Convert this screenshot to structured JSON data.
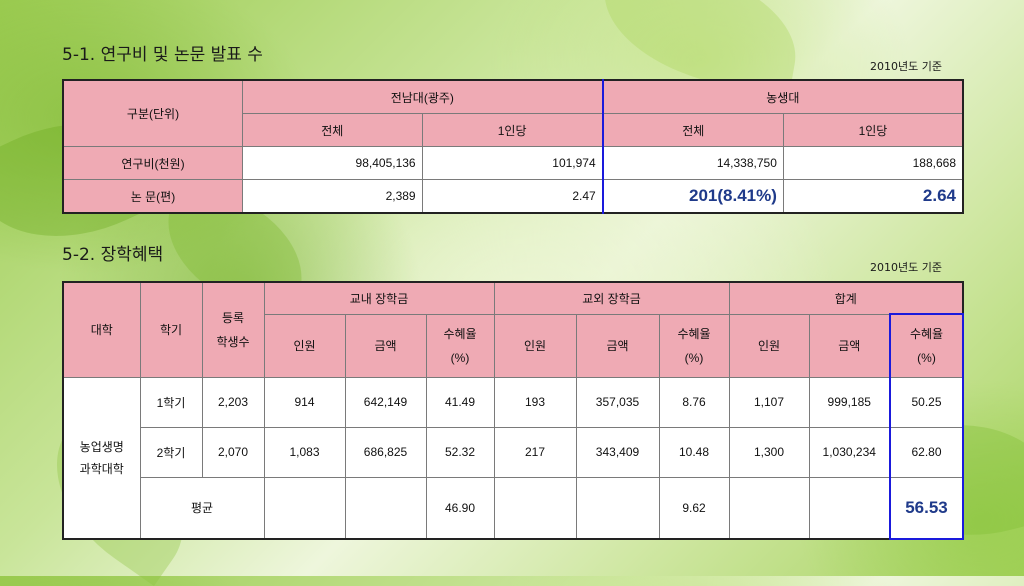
{
  "section1": {
    "title": "5-1.  연구비 및 논문 발표 수",
    "basis": "2010년도 기준",
    "header": {
      "category": "구분(단위)",
      "group1": "전남대(광주)",
      "group2": "농생대",
      "total": "전체",
      "per_person": "1인당"
    },
    "rows": [
      {
        "label": "연구비(천원)",
        "values": [
          "98,405,136",
          "101,974",
          "14,338,750",
          "188,668"
        ]
      },
      {
        "label": "논 문(편)",
        "values": [
          "2,389",
          "2.47",
          "201(8.41%)",
          "2.64"
        ]
      }
    ]
  },
  "section2": {
    "title": "5-2. 장학혜택",
    "basis": "2010년도 기준",
    "header": {
      "college": "대학",
      "semester": "학기",
      "enrolled_line1": "등록",
      "enrolled_line2": "학생수",
      "internal": "교내 장학금",
      "external": "교외 장학금",
      "total": "합계",
      "people": "인원",
      "amount": "금액",
      "rate_line1": "수혜율",
      "rate_line2": "(%)"
    },
    "college_line1": "농업생명",
    "college_line2": "과학대학",
    "rows": [
      {
        "semester": "1학기",
        "enrolled": "2,203",
        "in_people": "914",
        "in_amount": "642,149",
        "in_rate": "41.49",
        "ex_people": "193",
        "ex_amount": "357,035",
        "ex_rate": "8.76",
        "t_people": "1,107",
        "t_amount": "999,185",
        "t_rate": "50.25"
      },
      {
        "semester": "2학기",
        "enrolled": "2,070",
        "in_people": "1,083",
        "in_amount": "686,825",
        "in_rate": "52.32",
        "ex_people": "217",
        "ex_amount": "343,409",
        "ex_rate": "10.48",
        "t_people": "1,300",
        "t_amount": "1,030,234",
        "t_rate": "62.80"
      }
    ],
    "average": {
      "label": "평균",
      "in_rate": "46.90",
      "ex_rate": "9.62",
      "t_rate": "56.53"
    }
  }
}
